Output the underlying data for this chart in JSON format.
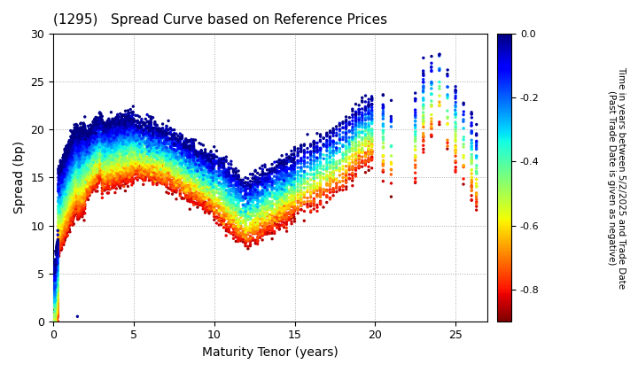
{
  "title": "(1295)   Spread Curve based on Reference Prices",
  "xlabel": "Maturity Tenor (years)",
  "ylabel": "Spread (bp)",
  "colorbar_label": "Time in years between 5/2/2025 and Trade Date\n(Past Trade Date is given as negative)",
  "xlim": [
    0,
    27
  ],
  "ylim": [
    0,
    30
  ],
  "xticks": [
    0,
    5,
    10,
    15,
    20,
    25
  ],
  "yticks": [
    0,
    5,
    10,
    15,
    20,
    25,
    30
  ],
  "cmap": "jet_r",
  "clim": [
    -0.9,
    0.0
  ],
  "cticks": [
    0.0,
    -0.2,
    -0.4,
    -0.6,
    -0.8
  ],
  "background_color": "#ffffff",
  "grid_color": "#aaaaaa",
  "grid_style": "dotted",
  "marker_size": 6,
  "seed": 42,
  "n_dates": 120
}
